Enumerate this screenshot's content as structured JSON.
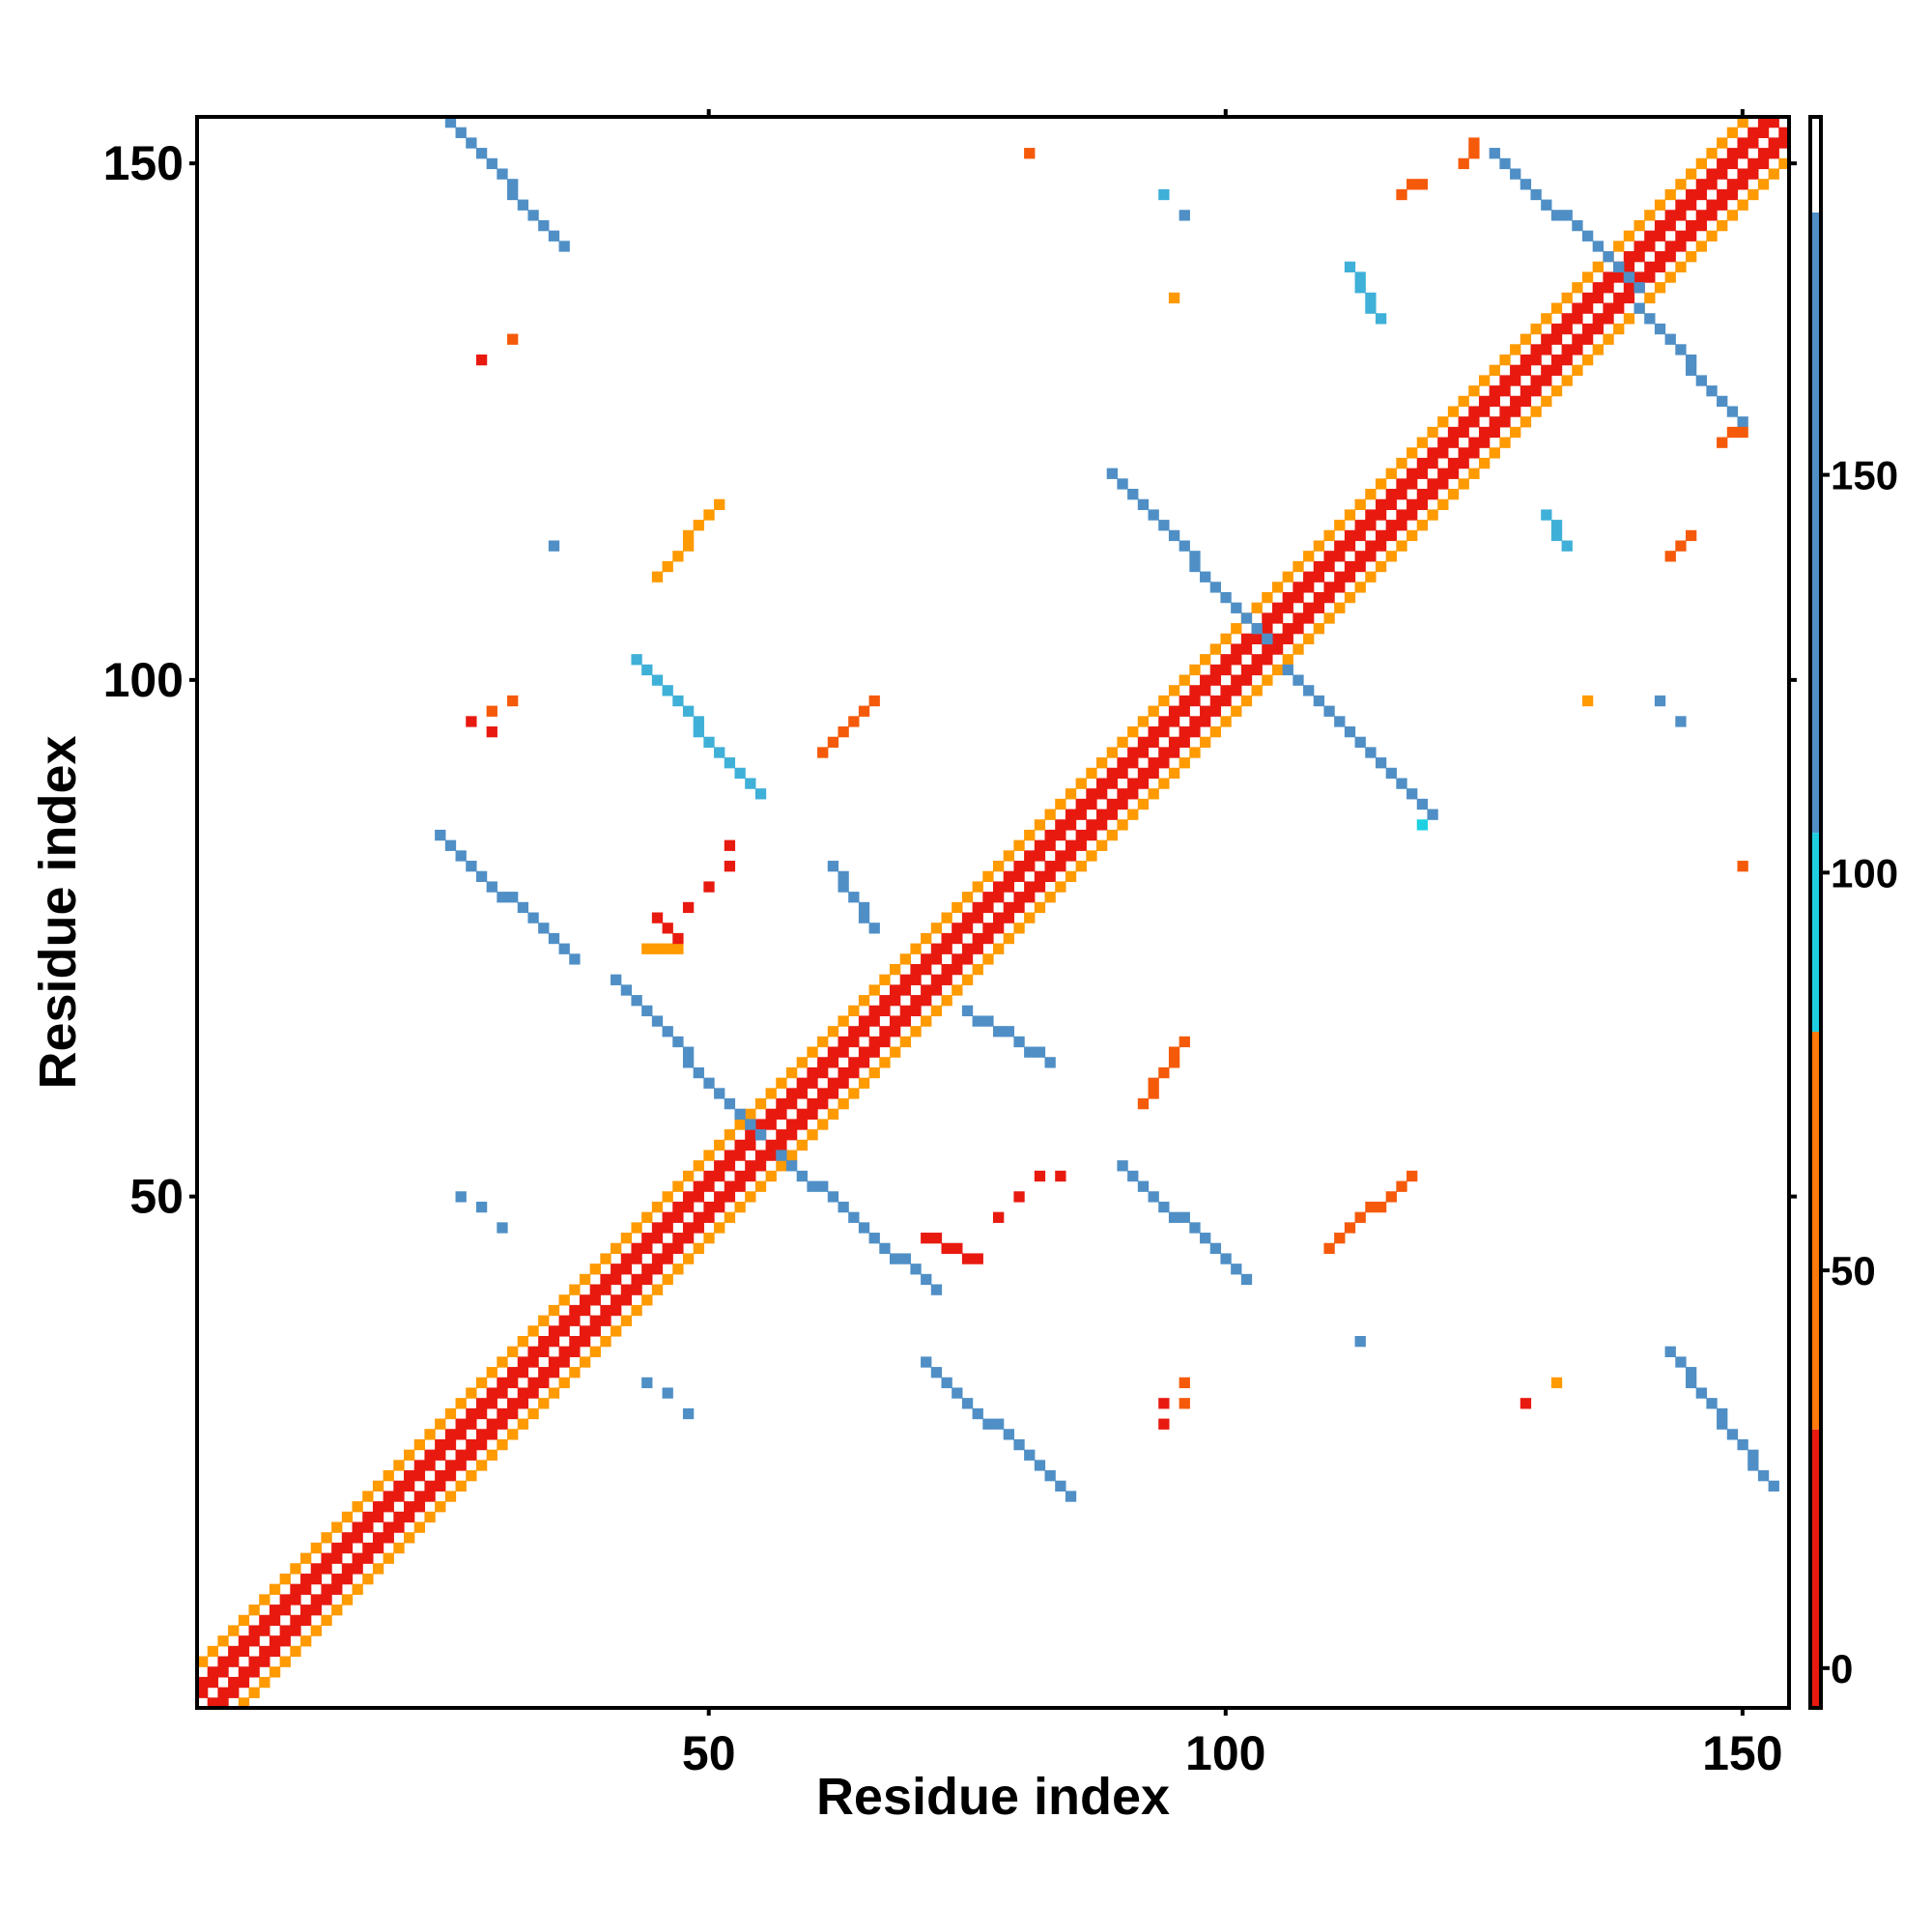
{
  "chart_data": {
    "type": "heatmap",
    "title": "",
    "xlabel": "Residue index",
    "ylabel": "Residue index",
    "xlim": [
      1,
      154
    ],
    "ylim": [
      1,
      154
    ],
    "x_ticks": [
      50,
      100,
      150
    ],
    "y_ticks": [
      50,
      100,
      150
    ],
    "colorbar": {
      "ticks": [
        0,
        50,
        100,
        150
      ],
      "range": [
        -5,
        195
      ],
      "bands": [
        {
          "from": -5,
          "to": 30,
          "color": "#e81a10"
        },
        {
          "from": 30,
          "to": 80,
          "color": "#ff7a0a"
        },
        {
          "from": 80,
          "to": 105,
          "color": "#1fcfe0"
        },
        {
          "from": 105,
          "to": 183,
          "color": "#4f8fc6"
        },
        {
          "from": 183,
          "to": 195,
          "color": "#ffffff"
        }
      ]
    },
    "colors": {
      "red": "#e81a10",
      "orange_red": "#f55a0a",
      "orange": "#ff9a00",
      "cyan": "#1fd0e3",
      "blue": "#4f8fc6",
      "light_blue": "#3fb0d8"
    },
    "segments": [
      {
        "x": [
          2,
          154
        ],
        "y": [
          1,
          153
        ],
        "value": 5
      },
      {
        "x": [
          1,
          153
        ],
        "y": [
          2,
          154
        ],
        "value": 5
      },
      {
        "x": [
          3,
          154
        ],
        "y": [
          1,
          152
        ],
        "value": 20
      },
      {
        "x": [
          1,
          152
        ],
        "y": [
          3,
          154
        ],
        "value": 20
      },
      {
        "x": [
          5,
          154
        ],
        "y": [
          1,
          150
        ],
        "value": 60
      },
      {
        "x": [
          1,
          150
        ],
        "y": [
          5,
          154
        ],
        "value": 60
      },
      {
        "x": [
          25,
          36
        ],
        "y": [
          154,
          142
        ],
        "value": 145
      },
      {
        "x": [
          24,
          37
        ],
        "y": [
          85,
          73
        ],
        "value": 145
      },
      {
        "x": [
          43,
          55
        ],
        "y": [
          102,
          89
        ],
        "value": 120
      },
      {
        "x": [
          41,
          55
        ],
        "y": [
          71,
          56
        ],
        "value": 145
      },
      {
        "x": [
          57,
          72
        ],
        "y": [
          54,
          41
        ],
        "value": 145
      },
      {
        "x": [
          71,
          85
        ],
        "y": [
          34,
          21
        ],
        "value": 145
      },
      {
        "x": [
          89,
          104
        ],
        "y": [
          120,
          104
        ],
        "value": 145
      },
      {
        "x": [
          106,
          120
        ],
        "y": [
          101,
          87
        ],
        "value": 145
      },
      {
        "x": [
          90,
          102
        ],
        "y": [
          53,
          42
        ],
        "value": 145
      },
      {
        "x": [
          143,
          153
        ],
        "y": [
          35,
          22
        ],
        "value": 145
      },
      {
        "x": [
          126,
          140
        ],
        "y": [
          151,
          138
        ],
        "value": 145
      },
      {
        "x": [
          140,
          150
        ],
        "y": [
          136,
          125
        ],
        "value": 145
      },
      {
        "x": [
          62,
          66
        ],
        "y": [
          82,
          76
        ],
        "value": 140
      },
      {
        "x": [
          75,
          83
        ],
        "y": [
          68,
          63
        ],
        "value": 140
      },
      {
        "x": [
          112,
          115
        ],
        "y": [
          140,
          135
        ],
        "value": 115
      },
      {
        "x": [
          131,
          133
        ],
        "y": [
          116,
          113
        ],
        "value": 115
      },
      {
        "x": [
          44,
          47
        ],
        "y": [
          74,
          74
        ],
        "value": 60
      },
      {
        "x": [
          45,
          47
        ],
        "y": [
          77,
          75
        ],
        "value": 20
      },
      {
        "x": [
          71,
          76
        ],
        "y": [
          46,
          44
        ],
        "value": 20
      },
      {
        "x": [
          45,
          51
        ],
        "y": [
          110,
          117
        ],
        "value": 55
      },
      {
        "x": [
          61,
          66
        ],
        "y": [
          93,
          98
        ],
        "value": 35
      },
      {
        "x": [
          92,
          96
        ],
        "y": [
          59,
          65
        ],
        "value": 35
      },
      {
        "x": [
          110,
          118
        ],
        "y": [
          45,
          52
        ],
        "value": 45
      },
      {
        "x": [
          117,
          119
        ],
        "y": [
          147,
          148
        ],
        "value": 45
      },
      {
        "x": [
          123,
          124
        ],
        "y": [
          150,
          152
        ],
        "value": 45
      },
      {
        "x": [
          148,
          150
        ],
        "y": [
          123,
          124
        ],
        "value": 40
      },
      {
        "x": [
          143,
          145
        ],
        "y": [
          112,
          114
        ],
        "value": 45
      }
    ],
    "points": [
      {
        "x": 81,
        "y": 151,
        "value": 40
      },
      {
        "x": 94,
        "y": 147,
        "value": 120
      },
      {
        "x": 96,
        "y": 145,
        "value": 130
      },
      {
        "x": 95,
        "y": 137,
        "value": 65
      },
      {
        "x": 31,
        "y": 133,
        "value": 40
      },
      {
        "x": 28,
        "y": 131,
        "value": 10
      },
      {
        "x": 35,
        "y": 113,
        "value": 130
      },
      {
        "x": 27,
        "y": 96,
        "value": 10
      },
      {
        "x": 29,
        "y": 97,
        "value": 30
      },
      {
        "x": 31,
        "y": 98,
        "value": 40
      },
      {
        "x": 29,
        "y": 95,
        "value": 10
      },
      {
        "x": 52,
        "y": 84,
        "value": 20
      },
      {
        "x": 52,
        "y": 82,
        "value": 20
      },
      {
        "x": 50,
        "y": 80,
        "value": 20
      },
      {
        "x": 48,
        "y": 78,
        "value": 20
      },
      {
        "x": 26,
        "y": 50,
        "value": 130
      },
      {
        "x": 28,
        "y": 49,
        "value": 130
      },
      {
        "x": 30,
        "y": 47,
        "value": 130
      },
      {
        "x": 44,
        "y": 32,
        "value": 130
      },
      {
        "x": 46,
        "y": 31,
        "value": 130
      },
      {
        "x": 48,
        "y": 29,
        "value": 130
      },
      {
        "x": 78,
        "y": 48,
        "value": 20
      },
      {
        "x": 80,
        "y": 50,
        "value": 20
      },
      {
        "x": 82,
        "y": 52,
        "value": 20
      },
      {
        "x": 84,
        "y": 52,
        "value": 20
      },
      {
        "x": 94,
        "y": 30,
        "value": 15
      },
      {
        "x": 94,
        "y": 28,
        "value": 15
      },
      {
        "x": 96,
        "y": 30,
        "value": 40
      },
      {
        "x": 96,
        "y": 32,
        "value": 40
      },
      {
        "x": 113,
        "y": 36,
        "value": 130
      },
      {
        "x": 129,
        "y": 30,
        "value": 15
      },
      {
        "x": 132,
        "y": 32,
        "value": 55
      },
      {
        "x": 135,
        "y": 98,
        "value": 65
      },
      {
        "x": 142,
        "y": 98,
        "value": 130
      },
      {
        "x": 144,
        "y": 96,
        "value": 130
      },
      {
        "x": 119,
        "y": 86,
        "value": 90
      },
      {
        "x": 150,
        "y": 82,
        "value": 40
      }
    ]
  }
}
